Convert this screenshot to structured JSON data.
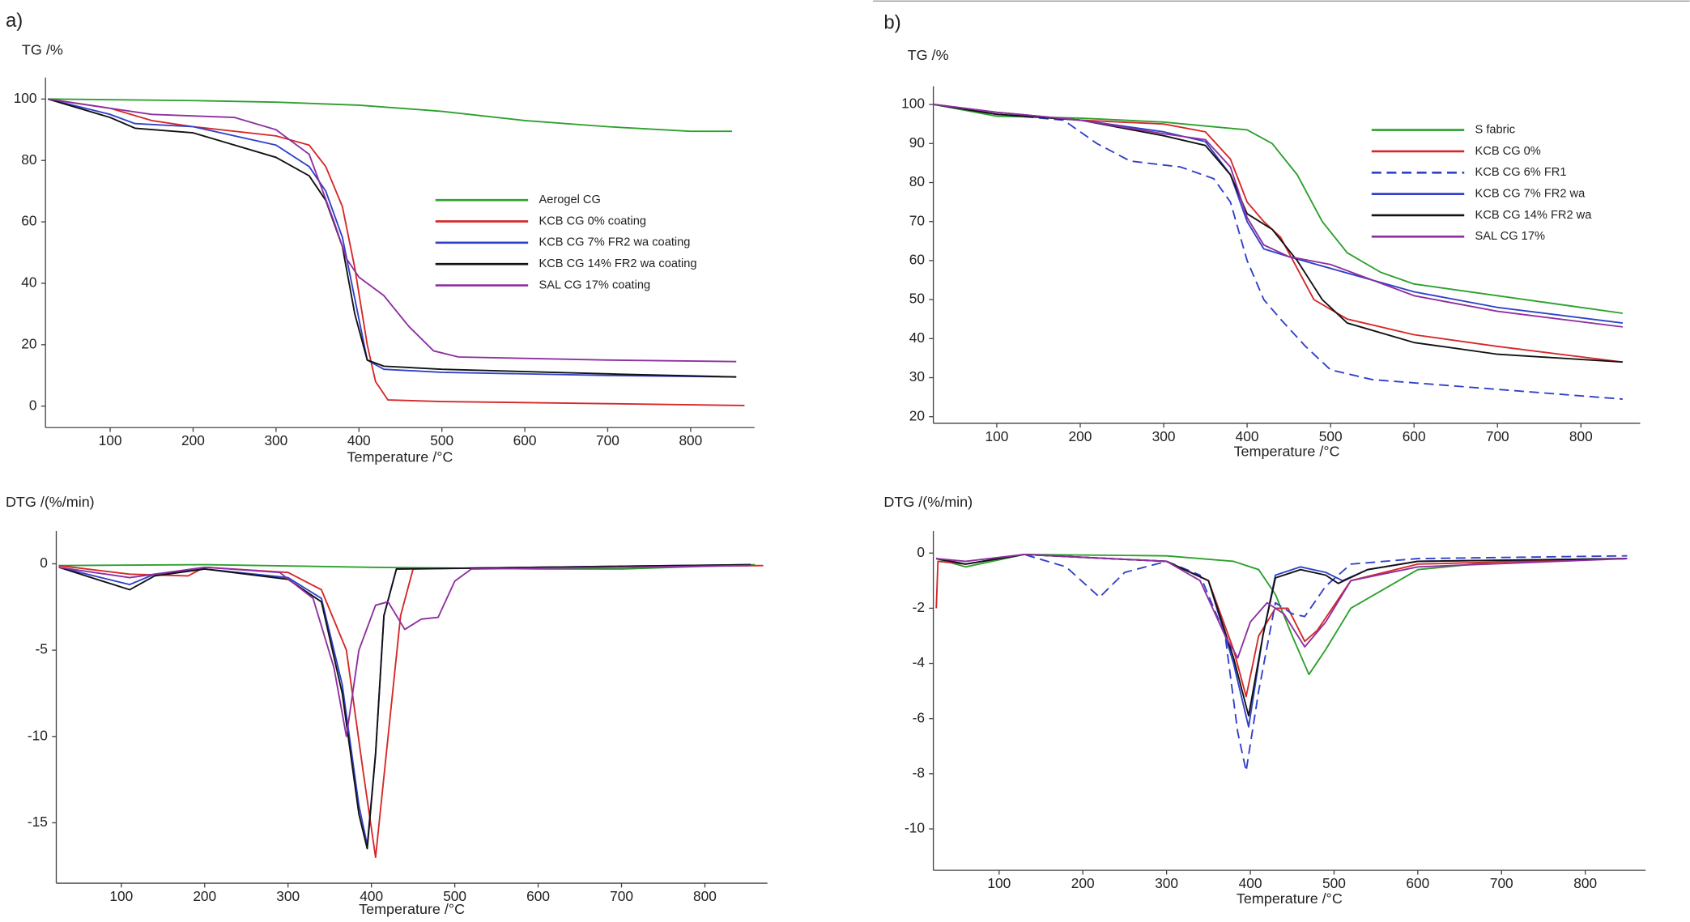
{
  "chart_data": [
    {
      "type": "line",
      "panel": "a)",
      "y_label": "TG /%",
      "x_label": "Temperature /°C",
      "xlim": [
        22,
        877
      ],
      "ylim": [
        -7,
        107
      ],
      "xticks": [
        100,
        200,
        300,
        400,
        500,
        600,
        700,
        800
      ],
      "yticks": [
        0,
        20,
        40,
        60,
        80,
        100
      ],
      "legend": "center right",
      "series": [
        {
          "name": "Aerogel CG",
          "color": "#2ca02c",
          "x": [
            25,
            200,
            300,
            400,
            500,
            600,
            700,
            800,
            850
          ],
          "values": [
            100,
            99.5,
            99,
            98,
            96,
            93,
            91,
            89.5,
            89.5
          ]
        },
        {
          "name": "KCB CG 0% coating",
          "color": "#d62728",
          "x": [
            25,
            100,
            150,
            200,
            300,
            340,
            360,
            380,
            395,
            410,
            420,
            435,
            500,
            700,
            865
          ],
          "values": [
            100,
            97,
            93,
            91,
            88,
            85,
            78,
            65,
            45,
            20,
            8,
            2,
            1.5,
            0.8,
            0.2
          ]
        },
        {
          "name": "KCB CG 7% FR2 wa coating",
          "color": "#3040c8",
          "x": [
            25,
            100,
            130,
            200,
            300,
            340,
            360,
            380,
            395,
            410,
            430,
            500,
            700,
            855
          ],
          "values": [
            100,
            95,
            92,
            91,
            85,
            78,
            70,
            55,
            35,
            15,
            12,
            11,
            10,
            9.5
          ]
        },
        {
          "name": "KCB CG 14% FR2 wa coating",
          "color": "#111111",
          "x": [
            25,
            100,
            130,
            200,
            300,
            340,
            360,
            380,
            395,
            410,
            430,
            500,
            700,
            855
          ],
          "values": [
            100,
            94,
            90.5,
            89,
            81,
            75,
            67,
            52,
            30,
            15,
            13,
            12,
            10.5,
            9.5
          ]
        },
        {
          "name": "SAL CG 17% coating",
          "color": "#8e2fa0",
          "x": [
            25,
            100,
            150,
            250,
            300,
            340,
            370,
            385,
            400,
            430,
            460,
            490,
            520,
            700,
            855
          ],
          "values": [
            100,
            97,
            95,
            94,
            90,
            82,
            60,
            48,
            42,
            36,
            26,
            18,
            16,
            15,
            14.5
          ]
        }
      ]
    },
    {
      "type": "line",
      "y_label": "DTG /(%/min)",
      "x_label": "Temperature /°C",
      "xlim": [
        22,
        875
      ],
      "ylim": [
        -18.5,
        1.9
      ],
      "xticks": [
        100,
        200,
        300,
        400,
        500,
        600,
        700,
        800
      ],
      "yticks": [
        0,
        -5,
        -10,
        -15
      ],
      "series": [
        {
          "color": "#2ca02c",
          "x": [
            25,
            200,
            400,
            600,
            700,
            860
          ],
          "values": [
            -0.1,
            -0.05,
            -0.2,
            -0.3,
            -0.3,
            -0.05
          ]
        },
        {
          "color": "#d62728",
          "x": [
            25,
            110,
            180,
            200,
            300,
            340,
            370,
            390,
            405,
            420,
            435,
            450,
            600,
            870
          ],
          "values": [
            -0.1,
            -0.6,
            -0.7,
            -0.2,
            -0.5,
            -1.5,
            -5,
            -12,
            -17,
            -10,
            -3,
            -0.3,
            -0.2,
            -0.1
          ]
        },
        {
          "color": "#3040c8",
          "x": [
            25,
            110,
            140,
            200,
            300,
            340,
            365,
            385,
            395,
            405,
            415,
            430,
            600,
            855
          ],
          "values": [
            -0.2,
            -1.2,
            -0.6,
            -0.3,
            -0.8,
            -2,
            -7,
            -14,
            -16.3,
            -11,
            -3,
            -0.3,
            -0.2,
            -0.05
          ]
        },
        {
          "color": "#111111",
          "x": [
            25,
            110,
            140,
            200,
            300,
            340,
            365,
            385,
            395,
            405,
            415,
            430,
            600,
            855
          ],
          "values": [
            -0.2,
            -1.5,
            -0.7,
            -0.3,
            -0.9,
            -2.2,
            -7.5,
            -14.5,
            -16.5,
            -11,
            -3,
            -0.3,
            -0.2,
            -0.05
          ]
        },
        {
          "color": "#8e2fa0",
          "x": [
            25,
            110,
            200,
            290,
            330,
            355,
            370,
            385,
            405,
            420,
            440,
            460,
            480,
            500,
            520,
            700,
            855
          ],
          "values": [
            -0.2,
            -0.8,
            -0.2,
            -0.5,
            -2,
            -6,
            -10,
            -5,
            -2.4,
            -2.2,
            -3.8,
            -3.2,
            -3.1,
            -1,
            -0.3,
            -0.2,
            -0.1
          ]
        }
      ]
    },
    {
      "type": "line",
      "panel": "b)",
      "y_label": "TG /%",
      "x_label": "Temperature /°C",
      "xlim": [
        24,
        871
      ],
      "ylim": [
        18.3,
        104.7
      ],
      "xticks": [
        100,
        200,
        300,
        400,
        500,
        600,
        700,
        800
      ],
      "yticks": [
        20,
        30,
        40,
        50,
        60,
        70,
        80,
        90,
        100
      ],
      "legend": "upper right",
      "series": [
        {
          "name": "S fabric",
          "color": "#2ca02c",
          "x": [
            25,
            100,
            200,
            300,
            400,
            430,
            460,
            490,
            520,
            560,
            600,
            700,
            850
          ],
          "values": [
            100,
            97,
            96.5,
            95.5,
            93.5,
            90,
            82,
            70,
            62,
            57,
            54,
            51,
            46.5
          ]
        },
        {
          "name": "KCB CG 0%",
          "color": "#d62728",
          "x": [
            25,
            100,
            200,
            300,
            350,
            380,
            400,
            420,
            440,
            460,
            480,
            520,
            600,
            700,
            850
          ],
          "values": [
            100,
            98,
            96,
            95,
            93,
            86,
            75,
            70,
            66,
            58,
            50,
            45,
            41,
            38,
            34
          ]
        },
        {
          "name": "KCB CG 6% FR1",
          "color": "#3040c8",
          "dash": true,
          "x": [
            25,
            100,
            180,
            220,
            260,
            320,
            360,
            380,
            400,
            420,
            440,
            470,
            500,
            550,
            700,
            850
          ],
          "values": [
            100,
            97.5,
            96,
            90,
            85.5,
            84,
            81,
            75,
            60,
            50,
            45,
            38,
            32,
            29.5,
            27,
            24.5
          ]
        },
        {
          "name": "KCB CG 7% FR2 wa",
          "color": "#3040c8",
          "x": [
            25,
            100,
            200,
            300,
            350,
            380,
            400,
            420,
            450,
            500,
            600,
            700,
            850
          ],
          "values": [
            100,
            98,
            96,
            93,
            90.5,
            82,
            70,
            63,
            61,
            58,
            52,
            48,
            44
          ]
        },
        {
          "name": "KCB CG 14% FR2 wa",
          "color": "#111111",
          "x": [
            25,
            100,
            200,
            300,
            350,
            380,
            400,
            430,
            460,
            490,
            520,
            600,
            700,
            850
          ],
          "values": [
            100,
            97.5,
            96,
            92,
            89.5,
            82,
            72,
            68,
            60,
            50,
            44,
            39,
            36,
            34
          ]
        },
        {
          "name": "SAL CG 17%",
          "color": "#8e2fa0",
          "x": [
            25,
            100,
            200,
            300,
            350,
            380,
            400,
            420,
            450,
            500,
            600,
            700,
            850
          ],
          "values": [
            100,
            98,
            96,
            92.5,
            91,
            84,
            71,
            64,
            61,
            59,
            51,
            47,
            43
          ]
        }
      ]
    },
    {
      "type": "line",
      "y_label": "DTG /(%/min)",
      "x_label": "Temperature /°C",
      "xlim": [
        21.5,
        872
      ],
      "ylim": [
        -11.5,
        0.8
      ],
      "xticks": [
        100,
        200,
        300,
        400,
        500,
        600,
        700,
        800
      ],
      "yticks": [
        0,
        -2,
        -4,
        -6,
        -8,
        -10
      ],
      "series": [
        {
          "color": "#2ca02c",
          "x": [
            25,
            60,
            130,
            300,
            380,
            410,
            430,
            450,
            470,
            490,
            520,
            600,
            700,
            850
          ],
          "values": [
            -0.2,
            -0.5,
            -0.05,
            -0.1,
            -0.3,
            -0.6,
            -1.5,
            -3,
            -4.4,
            -3.5,
            -2,
            -0.6,
            -0.3,
            -0.2
          ]
        },
        {
          "color": "#d62728",
          "x": [
            25,
            27,
            60,
            130,
            300,
            350,
            380,
            395,
            410,
            430,
            445,
            465,
            480,
            520,
            600,
            850
          ],
          "values": [
            -2,
            -0.3,
            -0.4,
            -0.05,
            -0.3,
            -1,
            -3.5,
            -5.2,
            -3,
            -2,
            -2,
            -3.2,
            -2.8,
            -1,
            -0.4,
            -0.2
          ]
        },
        {
          "color": "#3040c8",
          "dash": true,
          "x": [
            25,
            60,
            130,
            180,
            220,
            250,
            300,
            340,
            370,
            385,
            395,
            410,
            430,
            450,
            465,
            490,
            520,
            600,
            850
          ],
          "values": [
            -0.2,
            -0.4,
            -0.05,
            -0.5,
            -1.6,
            -0.7,
            -0.3,
            -0.8,
            -3,
            -6.5,
            -7.9,
            -5,
            -1.8,
            -2.2,
            -2.3,
            -1.2,
            -0.4,
            -0.2,
            -0.1
          ]
        },
        {
          "color": "#3040c8",
          "x": [
            25,
            60,
            130,
            300,
            350,
            380,
            398,
            415,
            430,
            460,
            490,
            510,
            540,
            600,
            850
          ],
          "values": [
            -0.2,
            -0.4,
            -0.05,
            -0.3,
            -1,
            -4,
            -6.3,
            -3,
            -0.8,
            -0.5,
            -0.7,
            -1,
            -0.6,
            -0.3,
            -0.2
          ]
        },
        {
          "color": "#111111",
          "x": [
            25,
            60,
            130,
            300,
            350,
            380,
            398,
            415,
            430,
            460,
            490,
            505,
            540,
            600,
            850
          ],
          "values": [
            -0.2,
            -0.4,
            -0.05,
            -0.3,
            -1,
            -3.8,
            -5.9,
            -3,
            -0.9,
            -0.6,
            -0.8,
            -1.1,
            -0.6,
            -0.3,
            -0.2
          ]
        },
        {
          "color": "#8e2fa0",
          "x": [
            25,
            60,
            130,
            300,
            340,
            370,
            385,
            400,
            420,
            440,
            465,
            490,
            520,
            600,
            850
          ],
          "values": [
            -0.2,
            -0.3,
            -0.05,
            -0.3,
            -1,
            -3,
            -3.8,
            -2.5,
            -1.8,
            -2.2,
            -3.4,
            -2.5,
            -1,
            -0.5,
            -0.2
          ]
        }
      ]
    }
  ]
}
